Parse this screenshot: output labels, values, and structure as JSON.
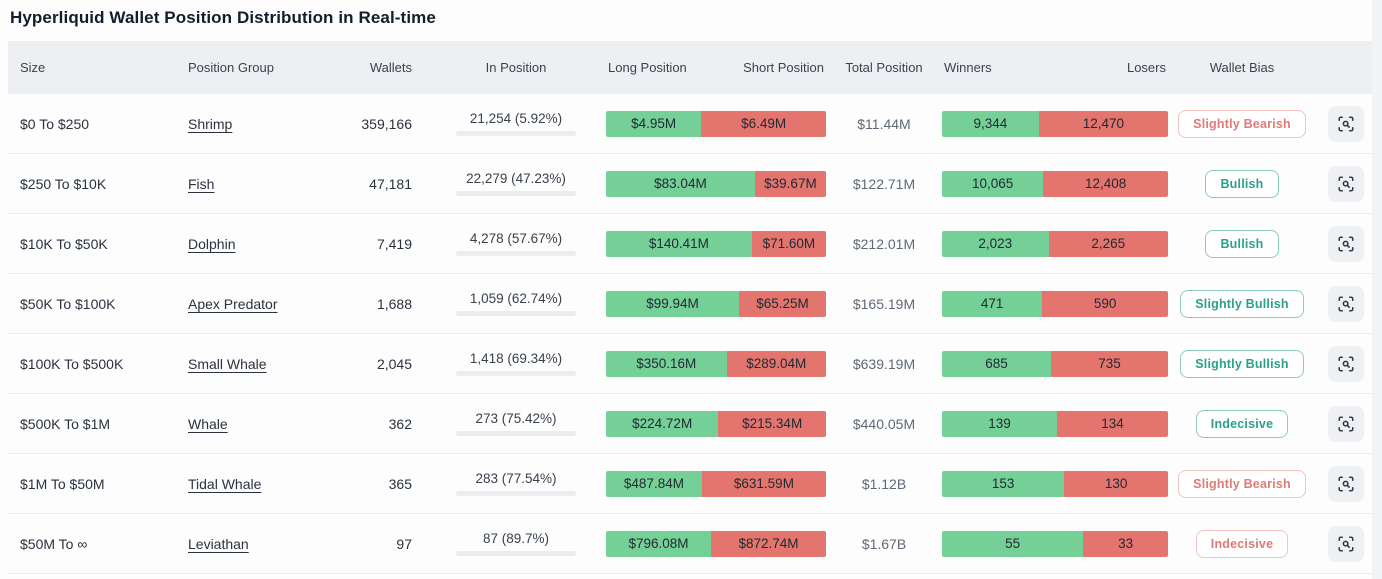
{
  "page": {
    "title": "Hyperliquid Wallet Position Distribution in Real-time"
  },
  "colors": {
    "long_green": "#74d096",
    "short_red": "#e3746e",
    "badge_green": "#2aa189",
    "badge_red": "#df7b76",
    "header_bg": "#edeff2"
  },
  "icons": {
    "row_action": "scan-search-icon"
  },
  "table": {
    "columns": {
      "size": "Size",
      "group": "Position Group",
      "wallets": "Wallets",
      "in_position": "In Position",
      "long": "Long Position",
      "short": "Short Position",
      "total": "Total Position",
      "winners": "Winners",
      "losers": "Losers",
      "bias": "Wallet Bias"
    },
    "rows": [
      {
        "size": "$0 To $250",
        "group": "Shrimp",
        "wallets": "359,166",
        "in_position": {
          "label": "21,254 (5.92%)",
          "pct": 5.92
        },
        "long": {
          "label": "$4.95M",
          "value": 4.95
        },
        "short": {
          "label": "$6.49M",
          "value": 6.49
        },
        "total": "$11.44M",
        "winners": {
          "label": "9,344",
          "value": 9344
        },
        "losers": {
          "label": "12,470",
          "value": 12470
        },
        "bias": {
          "label": "Slightly Bearish",
          "color": "red"
        }
      },
      {
        "size": "$250 To $10K",
        "group": "Fish",
        "wallets": "47,181",
        "in_position": {
          "label": "22,279 (47.23%)",
          "pct": 47.23
        },
        "long": {
          "label": "$83.04M",
          "value": 83.04
        },
        "short": {
          "label": "$39.67M",
          "value": 39.67
        },
        "total": "$122.71M",
        "winners": {
          "label": "10,065",
          "value": 10065
        },
        "losers": {
          "label": "12,408",
          "value": 12408
        },
        "bias": {
          "label": "Bullish",
          "color": "green"
        }
      },
      {
        "size": "$10K To $50K",
        "group": "Dolphin",
        "wallets": "7,419",
        "in_position": {
          "label": "4,278 (57.67%)",
          "pct": 57.67
        },
        "long": {
          "label": "$140.41M",
          "value": 140.41
        },
        "short": {
          "label": "$71.60M",
          "value": 71.6
        },
        "total": "$212.01M",
        "winners": {
          "label": "2,023",
          "value": 2023
        },
        "losers": {
          "label": "2,265",
          "value": 2265
        },
        "bias": {
          "label": "Bullish",
          "color": "green"
        }
      },
      {
        "size": "$50K To $100K",
        "group": "Apex Predator",
        "wallets": "1,688",
        "in_position": {
          "label": "1,059 (62.74%)",
          "pct": 62.74
        },
        "long": {
          "label": "$99.94M",
          "value": 99.94
        },
        "short": {
          "label": "$65.25M",
          "value": 65.25
        },
        "total": "$165.19M",
        "winners": {
          "label": "471",
          "value": 471
        },
        "losers": {
          "label": "590",
          "value": 590
        },
        "bias": {
          "label": "Slightly Bullish",
          "color": "green"
        }
      },
      {
        "size": "$100K To $500K",
        "group": "Small Whale",
        "wallets": "2,045",
        "in_position": {
          "label": "1,418 (69.34%)",
          "pct": 69.34
        },
        "long": {
          "label": "$350.16M",
          "value": 350.16
        },
        "short": {
          "label": "$289.04M",
          "value": 289.04
        },
        "total": "$639.19M",
        "winners": {
          "label": "685",
          "value": 685
        },
        "losers": {
          "label": "735",
          "value": 735
        },
        "bias": {
          "label": "Slightly Bullish",
          "color": "green"
        }
      },
      {
        "size": "$500K To $1M",
        "group": "Whale",
        "wallets": "362",
        "in_position": {
          "label": "273 (75.42%)",
          "pct": 75.42
        },
        "long": {
          "label": "$224.72M",
          "value": 224.72
        },
        "short": {
          "label": "$215.34M",
          "value": 215.34
        },
        "total": "$440.05M",
        "winners": {
          "label": "139",
          "value": 139
        },
        "losers": {
          "label": "134",
          "value": 134
        },
        "bias": {
          "label": "Indecisive",
          "color": "green"
        }
      },
      {
        "size": "$1M To $50M",
        "group": "Tidal Whale",
        "wallets": "365",
        "in_position": {
          "label": "283 (77.54%)",
          "pct": 77.54
        },
        "long": {
          "label": "$487.84M",
          "value": 487.84
        },
        "short": {
          "label": "$631.59M",
          "value": 631.59
        },
        "total": "$1.12B",
        "winners": {
          "label": "153",
          "value": 153
        },
        "losers": {
          "label": "130",
          "value": 130
        },
        "bias": {
          "label": "Slightly Bearish",
          "color": "red"
        }
      },
      {
        "size": "$50M To ∞",
        "group": "Leviathan",
        "wallets": "97",
        "in_position": {
          "label": "87 (89.7%)",
          "pct": 89.7
        },
        "long": {
          "label": "$796.08M",
          "value": 796.08
        },
        "short": {
          "label": "$872.74M",
          "value": 872.74
        },
        "total": "$1.67B",
        "winners": {
          "label": "55",
          "value": 55
        },
        "losers": {
          "label": "33",
          "value": 33
        },
        "bias": {
          "label": "Indecisive",
          "color": "red"
        }
      }
    ]
  }
}
